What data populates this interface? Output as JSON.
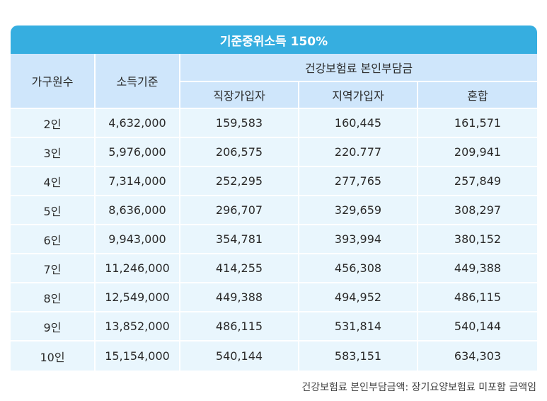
{
  "title": "기준중위소득 150%",
  "headers": {
    "household": "가구원수",
    "income": "소득기준",
    "premium_group": "건강보험료 본인부담금",
    "employee": "직장가입자",
    "regional": "지역가입자",
    "mixed": "혼합"
  },
  "rows": [
    [
      "2인",
      "4,632,000",
      "159,583",
      "160,445",
      "161,571"
    ],
    [
      "3인",
      "5,976,000",
      "206,575",
      "220.777",
      "209,941"
    ],
    [
      "4인",
      "7,314,000",
      "252,295",
      "277,765",
      "257,849"
    ],
    [
      "5인",
      "8,636,000",
      "296,707",
      "329,659",
      "308,297"
    ],
    [
      "6인",
      "9,943,000",
      "354,781",
      "393,994",
      "380,152"
    ],
    [
      "7인",
      "11,246,000",
      "414,255",
      "456,308",
      "449,388"
    ],
    [
      "8인",
      "12,549,000",
      "449,388",
      "494,952",
      "486,115"
    ],
    [
      "9인",
      "13,852,000",
      "486,115",
      "531,814",
      "540,144"
    ],
    [
      "10인",
      "15,154,000",
      "540,144",
      "583,151",
      "634,303"
    ]
  ],
  "footnote": "건강보험료 본인부담금액: 장기요양보험료 미포함 금액임",
  "colors": {
    "title_bg": "#36aee0",
    "header_bg": "#cfe6fb",
    "row_bg": "#e9f6fd"
  }
}
